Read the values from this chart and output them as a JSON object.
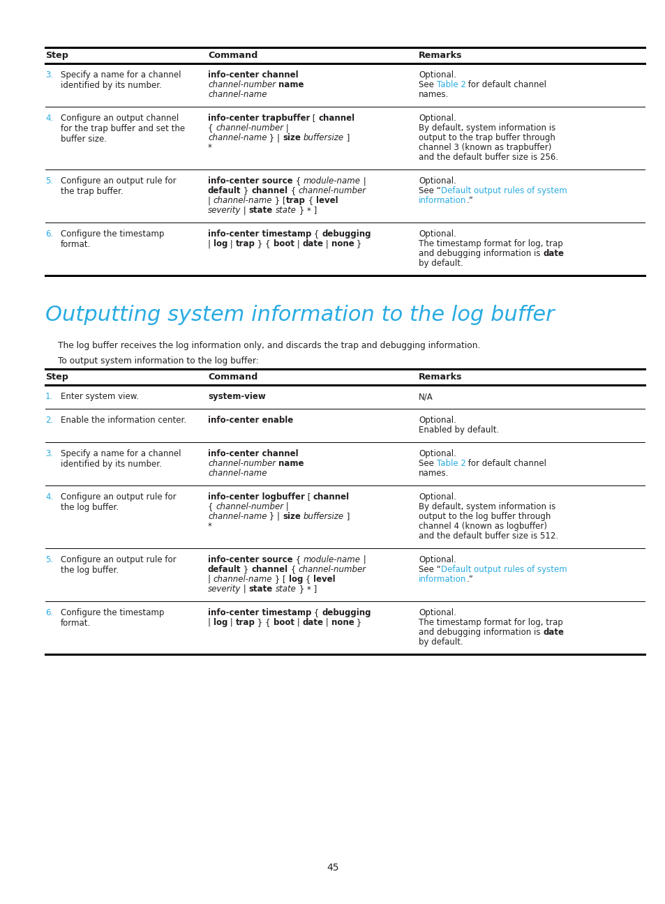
{
  "bg_color": "#ffffff",
  "page_number": "45",
  "section_title": "Outputting system information to the log buffer",
  "cyan_color": "#29abe2",
  "black_color": "#231f20",
  "section_desc1": "The log buffer receives the log information only, and discards the trap and debugging information.",
  "section_desc2": "To output system information to the log buffer:",
  "LM": 65,
  "RM": 924,
  "C_CMD": 298,
  "C_REM": 600,
  "FS_BODY": 8.5,
  "FS_HDR": 9.2,
  "FS_TITLE": 22,
  "LH": 14.0,
  "table1_rows": [
    {
      "step_num": "3.",
      "step_desc": "Specify a name for a channel\nidentified by its number.",
      "cmd_segs": [
        [
          {
            "t": "info-center channel",
            "b": true,
            "i": false
          }
        ],
        [
          {
            "t": "channel-number",
            "b": false,
            "i": true
          },
          {
            "t": " ",
            "b": false,
            "i": false
          },
          {
            "t": "name",
            "b": true,
            "i": false
          }
        ],
        [
          {
            "t": "channel-name",
            "b": false,
            "i": true
          }
        ]
      ],
      "rem_segs": [
        [
          {
            "t": "Optional.",
            "b": false,
            "i": false,
            "c": "k"
          }
        ],
        [
          {
            "t": "See ",
            "b": false,
            "i": false,
            "c": "k"
          },
          {
            "t": "Table 2",
            "b": false,
            "i": false,
            "c": "c"
          },
          {
            "t": " for default channel",
            "b": false,
            "i": false,
            "c": "k"
          }
        ],
        [
          {
            "t": "names.",
            "b": false,
            "i": false,
            "c": "k"
          }
        ]
      ]
    },
    {
      "step_num": "4.",
      "step_desc": "Configure an output channel\nfor the trap buffer and set the\nbuffer size.",
      "cmd_segs": [
        [
          {
            "t": "info-center trapbuffer",
            "b": true,
            "i": false
          },
          {
            "t": " [ ",
            "b": false,
            "i": false
          },
          {
            "t": "channel",
            "b": true,
            "i": false
          }
        ],
        [
          {
            "t": "{ ",
            "b": false,
            "i": false
          },
          {
            "t": "channel-number",
            "b": false,
            "i": true
          },
          {
            "t": " |",
            "b": false,
            "i": false
          }
        ],
        [
          {
            "t": "channel-name",
            "b": false,
            "i": true
          },
          {
            "t": " } | ",
            "b": false,
            "i": false
          },
          {
            "t": "size",
            "b": true,
            "i": false
          },
          {
            "t": " ",
            "b": false,
            "i": false
          },
          {
            "t": "buffersize",
            "b": false,
            "i": true
          },
          {
            "t": " ]",
            "b": false,
            "i": false
          }
        ],
        [
          {
            "t": "*",
            "b": false,
            "i": false
          }
        ]
      ],
      "rem_segs": [
        [
          {
            "t": "Optional.",
            "b": false,
            "i": false,
            "c": "k"
          }
        ],
        [
          {
            "t": "By default, system information is",
            "b": false,
            "i": false,
            "c": "k"
          }
        ],
        [
          {
            "t": "output to the trap buffer through",
            "b": false,
            "i": false,
            "c": "k"
          }
        ],
        [
          {
            "t": "channel 3 (known as trapbuffer)",
            "b": false,
            "i": false,
            "c": "k"
          }
        ],
        [
          {
            "t": "and the default buffer size is 256.",
            "b": false,
            "i": false,
            "c": "k"
          }
        ]
      ]
    },
    {
      "step_num": "5.",
      "step_desc": "Configure an output rule for\nthe trap buffer.",
      "cmd_segs": [
        [
          {
            "t": "info-center source",
            "b": true,
            "i": false
          },
          {
            "t": " { ",
            "b": false,
            "i": false
          },
          {
            "t": "module-name",
            "b": false,
            "i": true
          },
          {
            "t": " |",
            "b": false,
            "i": false
          }
        ],
        [
          {
            "t": "default",
            "b": true,
            "i": false
          },
          {
            "t": " } ",
            "b": false,
            "i": false
          },
          {
            "t": "channel",
            "b": true,
            "i": false
          },
          {
            "t": " { ",
            "b": false,
            "i": false
          },
          {
            "t": "channel-number",
            "b": false,
            "i": true
          }
        ],
        [
          {
            "t": "| ",
            "b": false,
            "i": false
          },
          {
            "t": "channel-name",
            "b": false,
            "i": true
          },
          {
            "t": " } [",
            "b": false,
            "i": false
          },
          {
            "t": "trap",
            "b": true,
            "i": false
          },
          {
            "t": " { ",
            "b": false,
            "i": false
          },
          {
            "t": "level",
            "b": true,
            "i": false
          }
        ],
        [
          {
            "t": "severity",
            "b": false,
            "i": true
          },
          {
            "t": " | ",
            "b": false,
            "i": false
          },
          {
            "t": "state",
            "b": true,
            "i": false
          },
          {
            "t": " ",
            "b": false,
            "i": false
          },
          {
            "t": "state",
            "b": false,
            "i": true
          },
          {
            "t": " } * ]",
            "b": false,
            "i": false
          }
        ]
      ],
      "rem_segs": [
        [
          {
            "t": "Optional.",
            "b": false,
            "i": false,
            "c": "k"
          }
        ],
        [
          {
            "t": "See “",
            "b": false,
            "i": false,
            "c": "k"
          },
          {
            "t": "Default output rules of system",
            "b": false,
            "i": false,
            "c": "c"
          }
        ],
        [
          {
            "t": "information",
            "b": false,
            "i": false,
            "c": "c"
          },
          {
            "t": ".”",
            "b": false,
            "i": false,
            "c": "k"
          }
        ]
      ]
    },
    {
      "step_num": "6.",
      "step_desc": "Configure the timestamp\nformat.",
      "cmd_segs": [
        [
          {
            "t": "info-center timestamp",
            "b": true,
            "i": false
          },
          {
            "t": " { ",
            "b": false,
            "i": false
          },
          {
            "t": "debugging",
            "b": true,
            "i": false
          }
        ],
        [
          {
            "t": "| ",
            "b": false,
            "i": false
          },
          {
            "t": "log",
            "b": true,
            "i": false
          },
          {
            "t": " | ",
            "b": false,
            "i": false
          },
          {
            "t": "trap",
            "b": true,
            "i": false
          },
          {
            "t": " } { ",
            "b": false,
            "i": false
          },
          {
            "t": "boot",
            "b": true,
            "i": false
          },
          {
            "t": " | ",
            "b": false,
            "i": false
          },
          {
            "t": "date",
            "b": true,
            "i": false
          },
          {
            "t": " | ",
            "b": false,
            "i": false
          },
          {
            "t": "none",
            "b": true,
            "i": false
          },
          {
            "t": " }",
            "b": false,
            "i": false
          }
        ]
      ],
      "rem_segs": [
        [
          {
            "t": "Optional.",
            "b": false,
            "i": false,
            "c": "k"
          }
        ],
        [
          {
            "t": "The timestamp format for log, trap",
            "b": false,
            "i": false,
            "c": "k"
          }
        ],
        [
          {
            "t": "and debugging information is ",
            "b": false,
            "i": false,
            "c": "k"
          },
          {
            "t": "date",
            "b": true,
            "i": false,
            "c": "k"
          }
        ],
        [
          {
            "t": "by default.",
            "b": false,
            "i": false,
            "c": "k"
          }
        ]
      ]
    }
  ],
  "table2_rows": [
    {
      "step_num": "1.",
      "step_desc": "Enter system view.",
      "cmd_segs": [
        [
          {
            "t": "system-view",
            "b": true,
            "i": false
          }
        ]
      ],
      "rem_segs": [
        [
          {
            "t": "N/A",
            "b": false,
            "i": false,
            "c": "k"
          }
        ]
      ]
    },
    {
      "step_num": "2.",
      "step_desc": "Enable the information center.",
      "cmd_segs": [
        [
          {
            "t": "info-center enable",
            "b": true,
            "i": false
          }
        ]
      ],
      "rem_segs": [
        [
          {
            "t": "Optional.",
            "b": false,
            "i": false,
            "c": "k"
          }
        ],
        [
          {
            "t": "Enabled by default.",
            "b": false,
            "i": false,
            "c": "k"
          }
        ]
      ]
    },
    {
      "step_num": "3.",
      "step_desc": "Specify a name for a channel\nidentified by its number.",
      "cmd_segs": [
        [
          {
            "t": "info-center channel",
            "b": true,
            "i": false
          }
        ],
        [
          {
            "t": "channel-number",
            "b": false,
            "i": true
          },
          {
            "t": " ",
            "b": false,
            "i": false
          },
          {
            "t": "name",
            "b": true,
            "i": false
          }
        ],
        [
          {
            "t": "channel-name",
            "b": false,
            "i": true
          }
        ]
      ],
      "rem_segs": [
        [
          {
            "t": "Optional.",
            "b": false,
            "i": false,
            "c": "k"
          }
        ],
        [
          {
            "t": "See ",
            "b": false,
            "i": false,
            "c": "k"
          },
          {
            "t": "Table 2",
            "b": false,
            "i": false,
            "c": "c"
          },
          {
            "t": " for default channel",
            "b": false,
            "i": false,
            "c": "k"
          }
        ],
        [
          {
            "t": "names.",
            "b": false,
            "i": false,
            "c": "k"
          }
        ]
      ]
    },
    {
      "step_num": "4.",
      "step_desc": "Configure an output rule for\nthe log buffer.",
      "cmd_segs": [
        [
          {
            "t": "info-center logbuffer",
            "b": true,
            "i": false
          },
          {
            "t": " [ ",
            "b": false,
            "i": false
          },
          {
            "t": "channel",
            "b": true,
            "i": false
          }
        ],
        [
          {
            "t": "{ ",
            "b": false,
            "i": false
          },
          {
            "t": "channel-number",
            "b": false,
            "i": true
          },
          {
            "t": " |",
            "b": false,
            "i": false
          }
        ],
        [
          {
            "t": "channel-name",
            "b": false,
            "i": true
          },
          {
            "t": " } | ",
            "b": false,
            "i": false
          },
          {
            "t": "size",
            "b": true,
            "i": false
          },
          {
            "t": " ",
            "b": false,
            "i": false
          },
          {
            "t": "buffersize",
            "b": false,
            "i": true
          },
          {
            "t": " ]",
            "b": false,
            "i": false
          }
        ],
        [
          {
            "t": "*",
            "b": false,
            "i": false
          }
        ]
      ],
      "rem_segs": [
        [
          {
            "t": "Optional.",
            "b": false,
            "i": false,
            "c": "k"
          }
        ],
        [
          {
            "t": "By default, system information is",
            "b": false,
            "i": false,
            "c": "k"
          }
        ],
        [
          {
            "t": "output to the log buffer through",
            "b": false,
            "i": false,
            "c": "k"
          }
        ],
        [
          {
            "t": "channel 4 (known as logbuffer)",
            "b": false,
            "i": false,
            "c": "k"
          }
        ],
        [
          {
            "t": "and the default buffer size is 512.",
            "b": false,
            "i": false,
            "c": "k"
          }
        ]
      ]
    },
    {
      "step_num": "5.",
      "step_desc": "Configure an output rule for\nthe log buffer.",
      "cmd_segs": [
        [
          {
            "t": "info-center source",
            "b": true,
            "i": false
          },
          {
            "t": " { ",
            "b": false,
            "i": false
          },
          {
            "t": "module-name",
            "b": false,
            "i": true
          },
          {
            "t": " |",
            "b": false,
            "i": false
          }
        ],
        [
          {
            "t": "default",
            "b": true,
            "i": false
          },
          {
            "t": " } ",
            "b": false,
            "i": false
          },
          {
            "t": "channel",
            "b": true,
            "i": false
          },
          {
            "t": " { ",
            "b": false,
            "i": false
          },
          {
            "t": "channel-number",
            "b": false,
            "i": true
          }
        ],
        [
          {
            "t": "| ",
            "b": false,
            "i": false
          },
          {
            "t": "channel-name",
            "b": false,
            "i": true
          },
          {
            "t": " } [ ",
            "b": false,
            "i": false
          },
          {
            "t": "log",
            "b": true,
            "i": false
          },
          {
            "t": " { ",
            "b": false,
            "i": false
          },
          {
            "t": "level",
            "b": true,
            "i": false
          }
        ],
        [
          {
            "t": "severity",
            "b": false,
            "i": true
          },
          {
            "t": " | ",
            "b": false,
            "i": false
          },
          {
            "t": "state",
            "b": true,
            "i": false
          },
          {
            "t": " ",
            "b": false,
            "i": false
          },
          {
            "t": "state",
            "b": false,
            "i": true
          },
          {
            "t": " } * ]",
            "b": false,
            "i": false
          }
        ]
      ],
      "rem_segs": [
        [
          {
            "t": "Optional.",
            "b": false,
            "i": false,
            "c": "k"
          }
        ],
        [
          {
            "t": "See “",
            "b": false,
            "i": false,
            "c": "k"
          },
          {
            "t": "Default output rules of system",
            "b": false,
            "i": false,
            "c": "c"
          }
        ],
        [
          {
            "t": "information",
            "b": false,
            "i": false,
            "c": "c"
          },
          {
            "t": ".”",
            "b": false,
            "i": false,
            "c": "k"
          }
        ]
      ]
    },
    {
      "step_num": "6.",
      "step_desc": "Configure the timestamp\nformat.",
      "cmd_segs": [
        [
          {
            "t": "info-center timestamp",
            "b": true,
            "i": false
          },
          {
            "t": " { ",
            "b": false,
            "i": false
          },
          {
            "t": "debugging",
            "b": true,
            "i": false
          }
        ],
        [
          {
            "t": "| ",
            "b": false,
            "i": false
          },
          {
            "t": "log",
            "b": true,
            "i": false
          },
          {
            "t": " | ",
            "b": false,
            "i": false
          },
          {
            "t": "trap",
            "b": true,
            "i": false
          },
          {
            "t": " } { ",
            "b": false,
            "i": false
          },
          {
            "t": "boot",
            "b": true,
            "i": false
          },
          {
            "t": " | ",
            "b": false,
            "i": false
          },
          {
            "t": "date",
            "b": true,
            "i": false
          },
          {
            "t": " | ",
            "b": false,
            "i": false
          },
          {
            "t": "none",
            "b": true,
            "i": false
          },
          {
            "t": " }",
            "b": false,
            "i": false
          }
        ]
      ],
      "rem_segs": [
        [
          {
            "t": "Optional.",
            "b": false,
            "i": false,
            "c": "k"
          }
        ],
        [
          {
            "t": "The timestamp format for log, trap",
            "b": false,
            "i": false,
            "c": "k"
          }
        ],
        [
          {
            "t": "and debugging information is ",
            "b": false,
            "i": false,
            "c": "k"
          },
          {
            "t": "date",
            "b": true,
            "i": false,
            "c": "k"
          }
        ],
        [
          {
            "t": "by default.",
            "b": false,
            "i": false,
            "c": "k"
          }
        ]
      ]
    }
  ]
}
